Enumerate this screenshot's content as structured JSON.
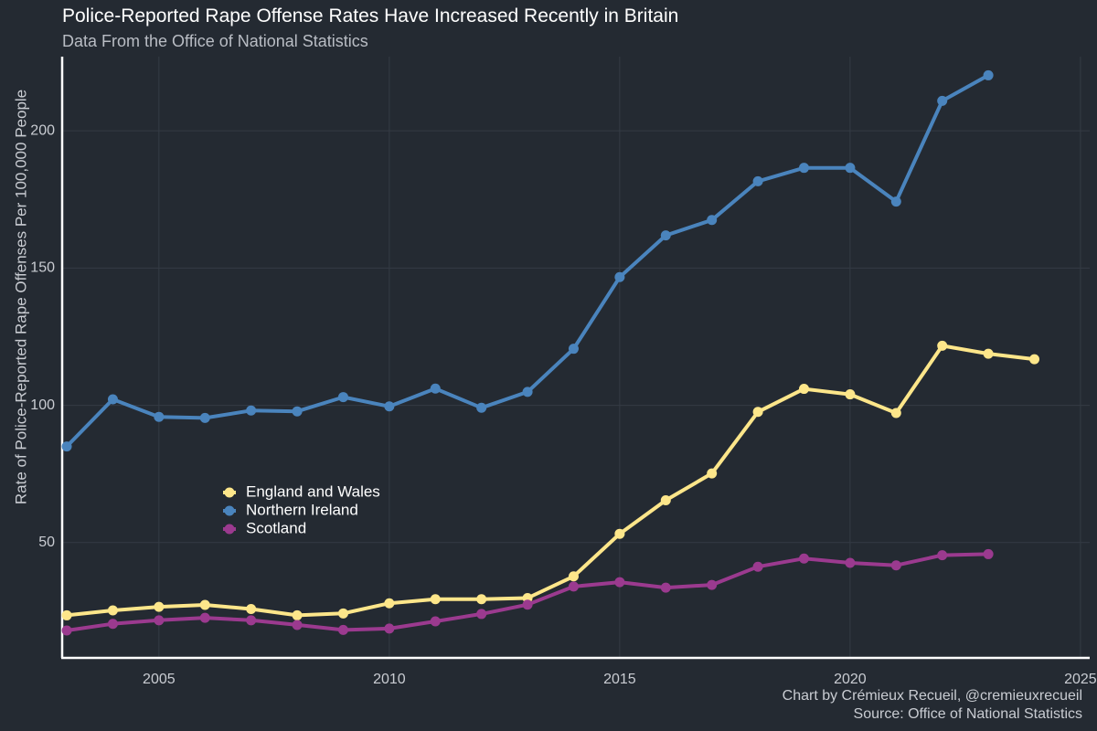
{
  "chart_data": {
    "type": "line",
    "title": "Police-Reported Rape Offense Rates Have Increased Recently in Britain",
    "subtitle": "Data From the Office of National Statistics",
    "xlabel": "",
    "ylabel": "Rate of Police-Reported Rape Offenses Per 100,000 People",
    "xlim": [
      2002.9,
      2025.2
    ],
    "ylim": [
      8,
      227
    ],
    "x_ticks": [
      2005,
      2010,
      2015,
      2020,
      2025
    ],
    "y_ticks": [
      50,
      100,
      150,
      200
    ],
    "grid": true,
    "legend_position": "center-left",
    "series": [
      {
        "name": "England and Wales",
        "color": "#fde68a",
        "x": [
          2003,
          2004,
          2005,
          2006,
          2007,
          2008,
          2009,
          2010,
          2011,
          2012,
          2013,
          2014,
          2015,
          2016,
          2017,
          2018,
          2019,
          2020,
          2021,
          2022,
          2023,
          2024
        ],
        "values": [
          23.5,
          25.3,
          26.6,
          27.3,
          25.8,
          23.5,
          24.2,
          27.9,
          29.4,
          29.4,
          29.8,
          37.7,
          53.2,
          65.4,
          75.2,
          97.6,
          106.0,
          104.0,
          97.2,
          121.7,
          118.8,
          116.8
        ]
      },
      {
        "name": "Northern Ireland",
        "color": "#4a84bd",
        "x": [
          2003,
          2004,
          2005,
          2006,
          2007,
          2008,
          2009,
          2010,
          2011,
          2012,
          2013,
          2014,
          2015,
          2016,
          2017,
          2018,
          2019,
          2020,
          2021,
          2022,
          2023
        ],
        "values": [
          85.0,
          102.2,
          95.8,
          95.4,
          98.1,
          97.8,
          103.0,
          99.6,
          106.1,
          99.1,
          104.9,
          120.6,
          146.7,
          161.9,
          167.5,
          181.6,
          186.5,
          186.5,
          174.2,
          210.9,
          220.2
        ]
      },
      {
        "name": "Scotland",
        "color": "#9b3a8f",
        "x": [
          2003,
          2004,
          2005,
          2006,
          2007,
          2008,
          2009,
          2010,
          2011,
          2012,
          2013,
          2014,
          2015,
          2016,
          2017,
          2018,
          2019,
          2020,
          2021,
          2022,
          2023
        ],
        "values": [
          18.0,
          20.4,
          21.7,
          22.6,
          21.7,
          20.0,
          18.2,
          18.7,
          21.3,
          24.0,
          27.4,
          34.0,
          35.6,
          33.6,
          34.6,
          41.2,
          44.2,
          42.6,
          41.7,
          45.4,
          45.8
        ]
      }
    ]
  },
  "caption": {
    "line1": "Chart by Crémieux Recueil, @cremieuxrecueil",
    "line2": "Source: Office of National Statistics"
  }
}
